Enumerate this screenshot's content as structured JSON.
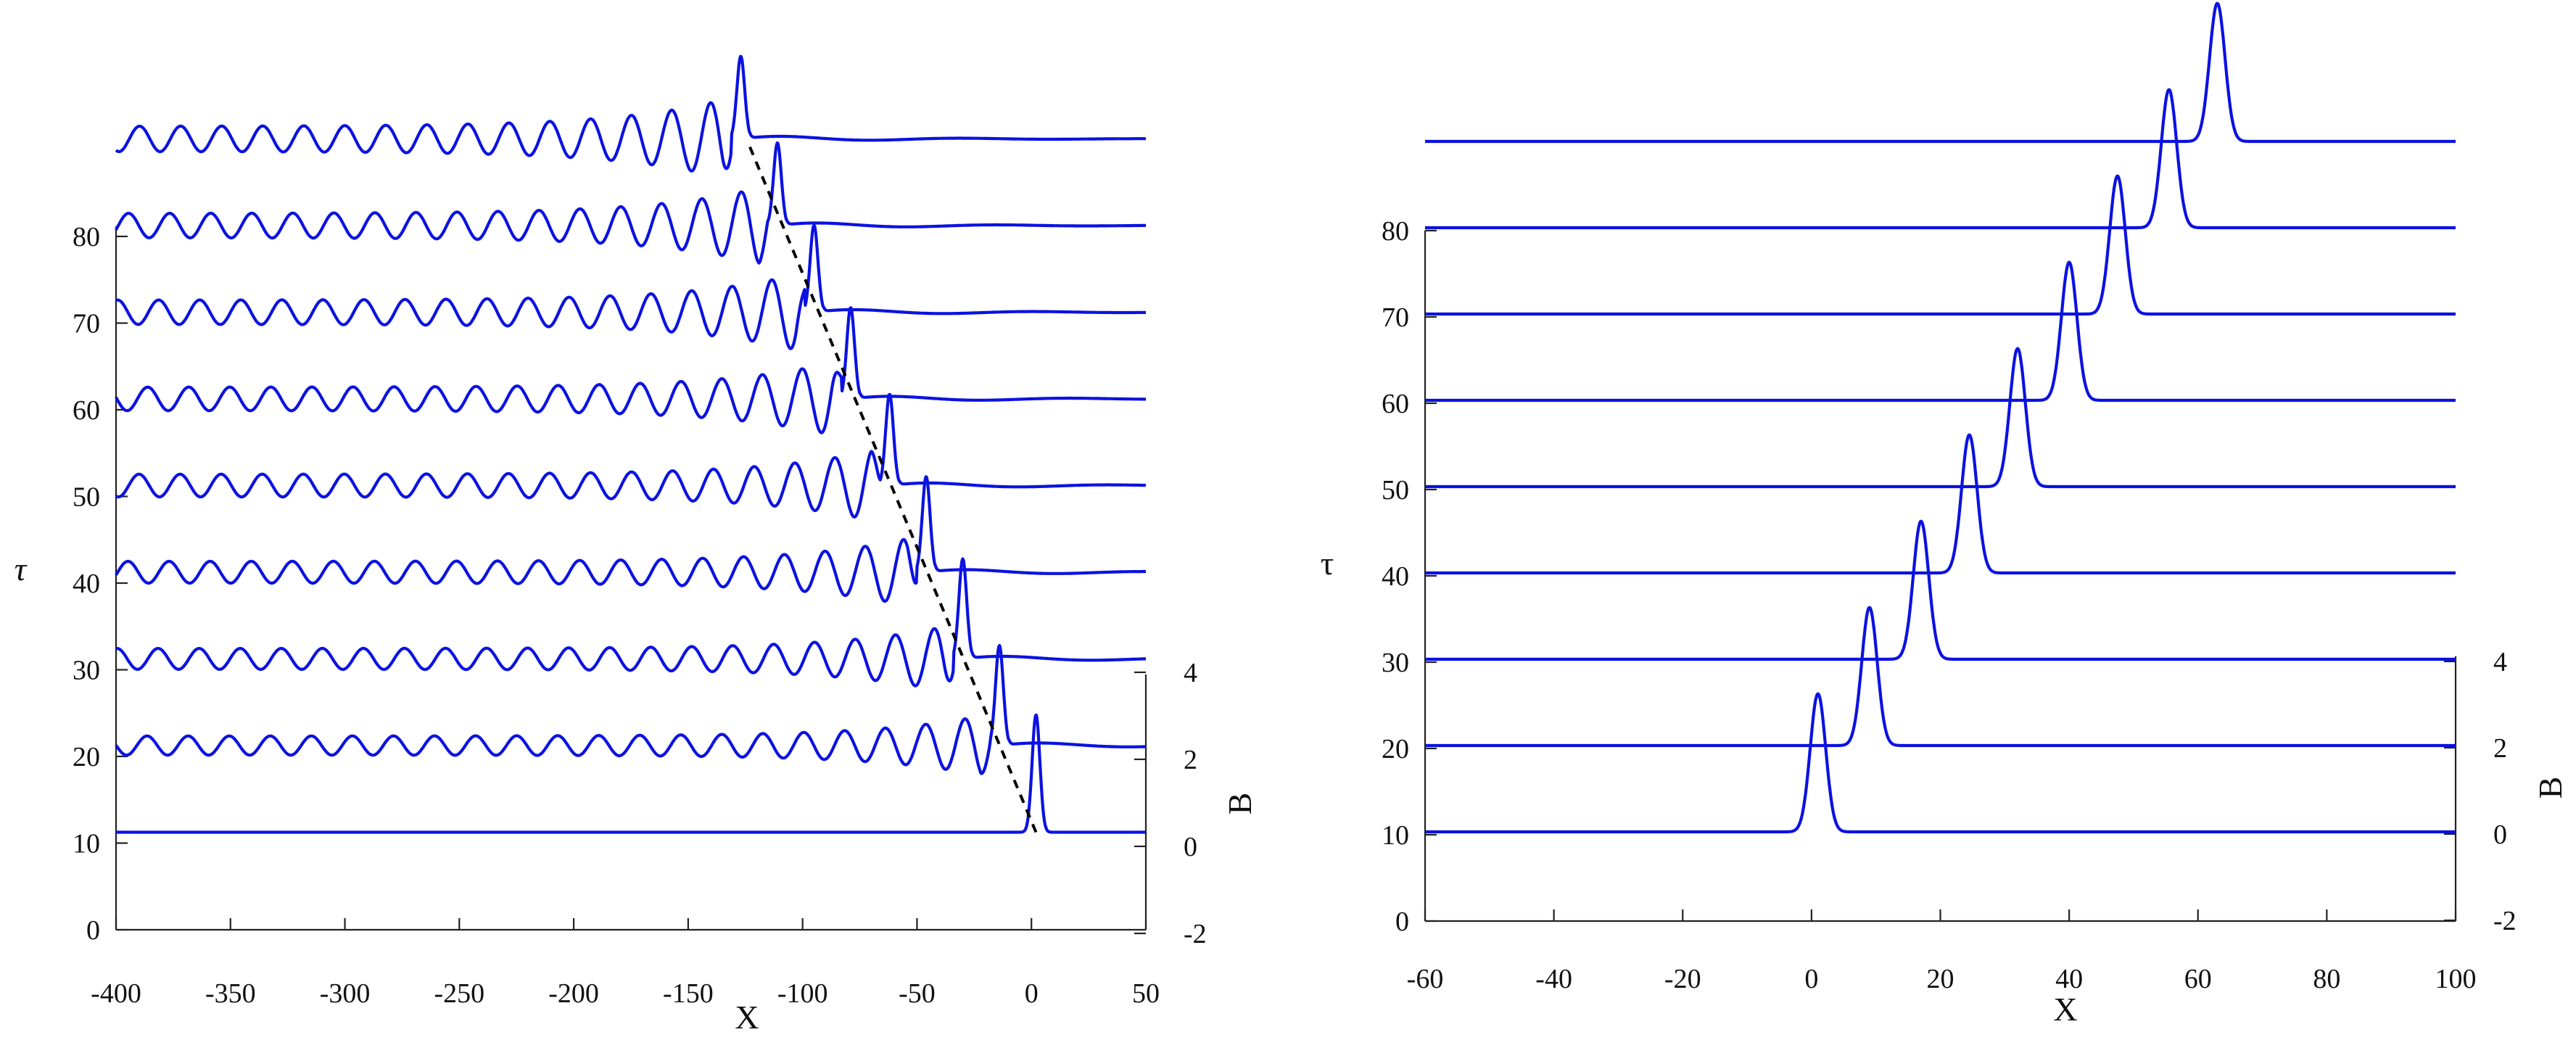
{
  "chart_data": [
    {
      "type": "line",
      "panel": "left",
      "xlabel": "X",
      "ylabel": "τ",
      "zlabel": "B",
      "xlim": [
        -400,
        50
      ],
      "ylim": [
        0,
        80
      ],
      "zlim": [
        -2,
        4
      ],
      "x_ticks": [
        "-400",
        "-350",
        "-300",
        "-250",
        "-200",
        "-150",
        "-100",
        "-50",
        "0",
        "50"
      ],
      "y_ticks": [
        "0",
        "10",
        "20",
        "30",
        "40",
        "50",
        "60",
        "70",
        "80"
      ],
      "z_ticks": [
        "-2",
        "0",
        "2",
        "4"
      ],
      "tau_slices": [
        10,
        20,
        30,
        40,
        50,
        60,
        70,
        80,
        90
      ],
      "series": [
        {
          "tau": 10,
          "peak_x": 2,
          "peak_B": 2.7,
          "tail_amplitude_B": 0.0
        },
        {
          "tau": 20,
          "peak_x": -14,
          "peak_B": 2.3,
          "tail_amplitude_B": 0.22
        },
        {
          "tau": 30,
          "peak_x": -30,
          "peak_B": 2.3,
          "tail_amplitude_B": 0.24
        },
        {
          "tau": 40,
          "peak_x": -46,
          "peak_B": 2.2,
          "tail_amplitude_B": 0.25
        },
        {
          "tau": 50,
          "peak_x": -62,
          "peak_B": 2.1,
          "tail_amplitude_B": 0.26
        },
        {
          "tau": 60,
          "peak_x": -79,
          "peak_B": 2.1,
          "tail_amplitude_B": 0.27
        },
        {
          "tau": 70,
          "peak_x": -95,
          "peak_B": 2.0,
          "tail_amplitude_B": 0.28
        },
        {
          "tau": 80,
          "peak_x": -111,
          "peak_B": 1.9,
          "tail_amplitude_B": 0.28
        },
        {
          "tau": 90,
          "peak_x": -127,
          "peak_B": 1.9,
          "tail_amplitude_B": 0.29
        }
      ],
      "annotation": "dashed line tracing the peak position"
    },
    {
      "type": "line",
      "panel": "right",
      "xlabel": "X",
      "ylabel": "τ",
      "zlabel": "B",
      "xlim": [
        -60,
        100
      ],
      "ylim": [
        0,
        80
      ],
      "zlim": [
        -2,
        4
      ],
      "x_ticks": [
        "-60",
        "-40",
        "-20",
        "0",
        "20",
        "40",
        "60",
        "80",
        "100"
      ],
      "y_ticks": [
        "0",
        "10",
        "20",
        "30",
        "40",
        "50",
        "60",
        "70",
        "80"
      ],
      "z_ticks": [
        "-2",
        "0",
        "2",
        "4"
      ],
      "tau_slices": [
        10,
        20,
        30,
        40,
        50,
        60,
        70,
        80,
        90
      ],
      "series": [
        {
          "tau": 10,
          "peak_x": 1,
          "peak_B": 3.2
        },
        {
          "tau": 20,
          "peak_x": 9,
          "peak_B": 3.2
        },
        {
          "tau": 30,
          "peak_x": 17,
          "peak_B": 3.2
        },
        {
          "tau": 40,
          "peak_x": 24.5,
          "peak_B": 3.2
        },
        {
          "tau": 50,
          "peak_x": 32,
          "peak_B": 3.2
        },
        {
          "tau": 60,
          "peak_x": 40,
          "peak_B": 3.2
        },
        {
          "tau": 70,
          "peak_x": 47.5,
          "peak_B": 3.2
        },
        {
          "tau": 80,
          "peak_x": 55.5,
          "peak_B": 3.2
        },
        {
          "tau": 90,
          "peak_x": 63,
          "peak_B": 3.2
        }
      ]
    }
  ]
}
